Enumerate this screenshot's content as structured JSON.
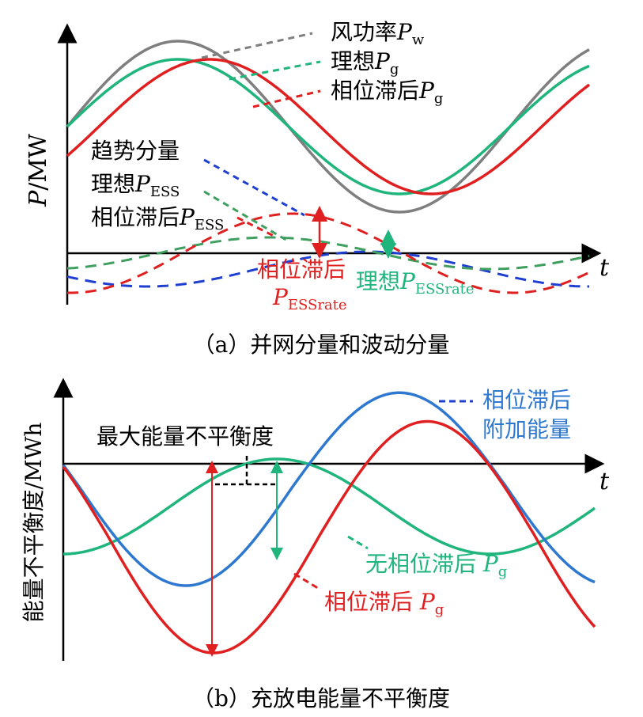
{
  "panel_a": {
    "caption": "（a）并网分量和波动分量",
    "y_axis_label": {
      "main": "P",
      "unit": "/MW"
    },
    "x_axis_label": "t",
    "legend_upper": [
      {
        "text": "风功率",
        "var": "P",
        "sub": "w",
        "color": "#7f7f7f"
      },
      {
        "text": "理想",
        "var": "P",
        "sub": "g",
        "color": "#1fb57d"
      },
      {
        "text": "相位滞后",
        "var": "P",
        "sub": "g",
        "color": "#e02020"
      }
    ],
    "legend_lower": [
      {
        "text": "趋势分量",
        "var": "",
        "sub": "",
        "color": "#1f3fd0"
      },
      {
        "text": "理想",
        "var": "P",
        "sub": "ESS",
        "color": "#1fb57d"
      },
      {
        "text": "相位滞后",
        "var": "P",
        "sub": "ESS",
        "color": "#e02020"
      }
    ],
    "annotations": [
      {
        "text": "相位滞后",
        "var": "P",
        "sub": "ESSrate",
        "color": "#e02020"
      },
      {
        "text": "理想",
        "var": "P",
        "sub": "ESSrate",
        "color": "#1fb57d"
      }
    ]
  },
  "panel_b": {
    "caption": "（b）充放电能量不平衡度",
    "y_axis_label": "能量不平衡度/MWh",
    "x_axis_label": "t",
    "annotations": {
      "max_imbalance": "最大能量不平衡度",
      "extra_energy_line1": "相位滞后",
      "extra_energy_line2": "附加能量",
      "no_lag": {
        "text": "无相位滞后 ",
        "var": "P",
        "sub": "g"
      },
      "lag": {
        "text": "相位滞后 ",
        "var": "P",
        "sub": "g"
      }
    }
  },
  "colors": {
    "gray": "#7f7f7f",
    "green": "#1fb57d",
    "red": "#e02020",
    "blue": "#1f3fd0",
    "blue_light": "#2f78d0",
    "axis": "#000000"
  }
}
